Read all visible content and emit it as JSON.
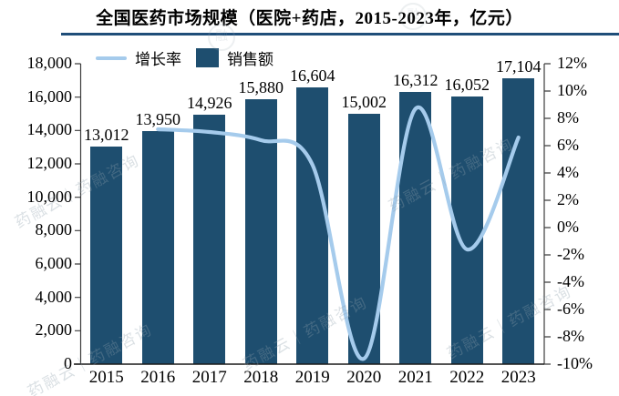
{
  "watermark": {
    "text": "药融云｜药融咨询",
    "logo_glyph": "融"
  },
  "chart_data": {
    "type": "bar",
    "title": "全国医药市场规模（医院+药店，2015-2023年，亿元）",
    "categories": [
      "2015",
      "2016",
      "2017",
      "2018",
      "2019",
      "2020",
      "2021",
      "2022",
      "2023"
    ],
    "series": [
      {
        "name": "销售额",
        "type": "bar",
        "axis": "left",
        "color": "#1E4E6F",
        "values": [
          13012,
          13950,
          14926,
          15880,
          16604,
          15002,
          16312,
          16052,
          17104
        ],
        "labels": [
          "13,012",
          "13,950",
          "14,926",
          "15,880",
          "16,604",
          "15,002",
          "16,312",
          "16,052",
          "17,104"
        ]
      },
      {
        "name": "增长率",
        "type": "line",
        "axis": "right",
        "color": "#A5CBEC",
        "values_percent": [
          null,
          7.2,
          7.0,
          6.4,
          4.6,
          -9.6,
          8.7,
          -1.6,
          6.6
        ]
      }
    ],
    "left_axis": {
      "min": 0,
      "max": 18000,
      "step": 2000,
      "tick_labels": [
        "18,000",
        "16,000",
        "14,000",
        "12,000",
        "10,000",
        "8,000",
        "6,000",
        "4,000",
        "2,000",
        "0"
      ]
    },
    "right_axis": {
      "min": -10,
      "max": 12,
      "step": 2,
      "tick_labels": [
        "12%",
        "10%",
        "8%",
        "6%",
        "4%",
        "2%",
        "0%",
        "-2%",
        "-4%",
        "-6%",
        "-8%",
        "-10%"
      ]
    },
    "legend": {
      "position": "top",
      "items": [
        "增长率",
        "销售额"
      ]
    },
    "gridlines": false,
    "axis_line_color": "#3d3d3d",
    "baseline_color": "#1a1a1a",
    "title_rule_color": "#1F4E79"
  }
}
